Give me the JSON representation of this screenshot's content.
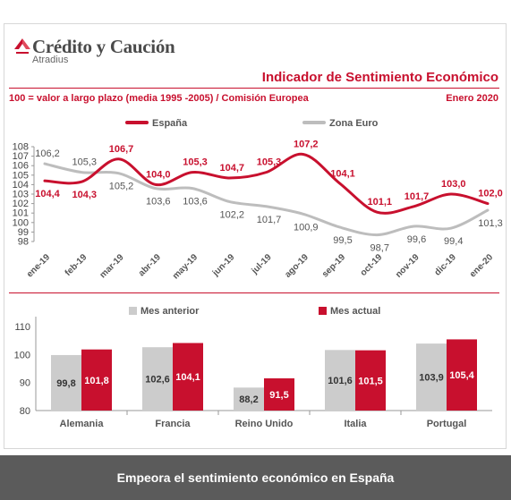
{
  "header": {
    "logo_name": "Crédito y Caución",
    "logo_sub": "Atradius",
    "title": "Indicador de Sentimiento Económico",
    "subtitle": "100 = valor a largo plazo (media 1995 -2005) / Comisión Europea",
    "date": "Enero 2020"
  },
  "colors": {
    "spain": "#c8102e",
    "euro": "#bdbdbd",
    "bar_dark": "#c8102e",
    "bar_light": "#cccccc"
  },
  "chart_data": [
    {
      "type": "line",
      "categories": [
        "ene-19",
        "feb-19",
        "mar-19",
        "abr-19",
        "may-19",
        "jun-19",
        "jul-19",
        "ago-19",
        "sep-19",
        "oct-19",
        "nov-19",
        "dic-19",
        "ene-20"
      ],
      "series": [
        {
          "name": "España",
          "values": [
            104.4,
            104.3,
            106.7,
            104.0,
            105.3,
            104.7,
            105.3,
            107.2,
            104.1,
            101.1,
            101.7,
            103.0,
            102.0
          ]
        },
        {
          "name": "Zona Euro",
          "values": [
            106.2,
            105.3,
            105.2,
            103.6,
            103.6,
            102.2,
            101.7,
            100.9,
            99.5,
            98.7,
            99.6,
            99.4,
            101.3
          ]
        }
      ],
      "yticks": [
        98,
        99,
        100,
        101,
        102,
        103,
        104,
        105,
        106,
        107,
        108
      ],
      "ylim": [
        98,
        108
      ],
      "legend": "top"
    },
    {
      "type": "bar",
      "categories": [
        "Alemania",
        "Francia",
        "Reino Unido",
        "Italia",
        "Portugal"
      ],
      "series": [
        {
          "name": "Mes anterior",
          "values": [
            99.8,
            102.6,
            88.2,
            101.6,
            103.9
          ]
        },
        {
          "name": "Mes actual",
          "values": [
            101.8,
            104.1,
            91.5,
            101.5,
            105.4
          ]
        }
      ],
      "yticks": [
        80,
        90,
        100,
        110
      ],
      "ylim": [
        80,
        110
      ],
      "legend": "top"
    }
  ],
  "footer": {
    "caption": "Empeora el sentimiento económico en España"
  }
}
